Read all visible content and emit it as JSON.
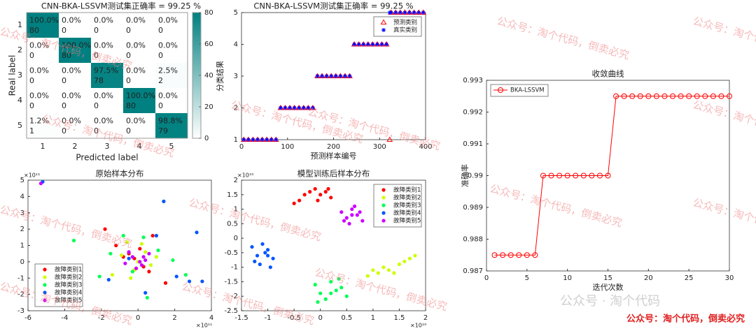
{
  "watermark": "公众号：淘个代码，倒卖必究",
  "footer_gray": "公众号 · 淘个代码",
  "chart_data": [
    {
      "type": "heatmap",
      "title": "CNN-BKA-LSSVM测试集正确率 = 99.25 %",
      "x_label": "Predicted label",
      "y_label": "Real label",
      "x_categories": [
        "1",
        "2",
        "3",
        "4",
        "5"
      ],
      "y_categories": [
        "1",
        "2",
        "3",
        "4",
        "5"
      ],
      "values": [
        [
          80,
          0,
          0,
          0,
          0
        ],
        [
          0,
          80,
          0,
          0,
          0
        ],
        [
          0,
          0,
          78,
          0,
          2
        ],
        [
          0,
          0,
          0,
          80,
          0
        ],
        [
          1,
          0,
          0,
          0,
          79
        ]
      ],
      "value_labels": [
        [
          "100.0%",
          "0.0%",
          "0.0%",
          "0.0%",
          "0.0%"
        ],
        [
          "0.0%",
          "100.0%",
          "0.0%",
          "0.0%",
          "0.0%"
        ],
        [
          "0.0%",
          "0.0%",
          "97.5%",
          "0.0%",
          "2.5%"
        ],
        [
          "0.0%",
          "0.0%",
          "0.0%",
          "100.0%",
          "0.0%"
        ],
        [
          "1.2%",
          "0.0%",
          "0.0%",
          "0.0%",
          "98.8%"
        ]
      ],
      "color": "#008080",
      "clim": [
        0,
        80
      ],
      "cticks": [
        0,
        20,
        40,
        60,
        80
      ]
    },
    {
      "type": "scatter",
      "title": "CNN-BKA-LSSVM测试集正确率 = 99.25 %",
      "x_label": "预测样本编号",
      "y_label": "分类结果",
      "xlim": [
        0,
        400
      ],
      "xticks": [
        0,
        100,
        200,
        300,
        400
      ],
      "ylim": [
        1,
        5
      ],
      "yticks": [
        1,
        2,
        3,
        4,
        5
      ],
      "legend": "upper right",
      "series": [
        {
          "name": "预测类别",
          "color": "#ff0000",
          "marker": "triangle",
          "x": [
            5,
            15,
            25,
            35,
            45,
            55,
            65,
            75,
            85,
            95,
            105,
            115,
            125,
            135,
            145,
            155,
            165,
            175,
            185,
            195,
            205,
            215,
            225,
            235,
            245,
            255,
            265,
            275,
            285,
            295,
            305,
            315,
            322,
            325,
            335,
            345,
            355,
            365,
            375,
            385,
            395
          ],
          "values": [
            1,
            1,
            1,
            1,
            1,
            1,
            1,
            1,
            2,
            2,
            2,
            2,
            2,
            2,
            2,
            2,
            3,
            3,
            3,
            3,
            3,
            3,
            3,
            3,
            4,
            4,
            4,
            4,
            4,
            4,
            4,
            4,
            1,
            5,
            5,
            5,
            5,
            5,
            5,
            5,
            5
          ]
        },
        {
          "name": "真实类别",
          "color": "#0000ff",
          "marker": "star",
          "x": [
            5,
            15,
            25,
            35,
            45,
            55,
            65,
            75,
            85,
            95,
            105,
            115,
            125,
            135,
            145,
            155,
            165,
            175,
            185,
            195,
            205,
            215,
            225,
            235,
            245,
            255,
            265,
            275,
            285,
            295,
            305,
            315,
            322,
            325,
            335,
            345,
            355,
            365,
            375,
            385,
            395
          ],
          "values": [
            1,
            1,
            1,
            1,
            1,
            1,
            1,
            1,
            2,
            2,
            2,
            2,
            2,
            2,
            2,
            2,
            3,
            3,
            3,
            3,
            3,
            3,
            3,
            3,
            4,
            4,
            4,
            4,
            4,
            4,
            4,
            4,
            5,
            5,
            5,
            5,
            5,
            5,
            5,
            5,
            5
          ]
        }
      ]
    },
    {
      "type": "line",
      "title": "收敛曲线",
      "x_label": "迭代次数",
      "y_label": "准确率",
      "xlim": [
        0,
        30
      ],
      "xticks": [
        0,
        5,
        10,
        15,
        20,
        25,
        30
      ],
      "ylim": [
        0.987,
        0.993
      ],
      "yticks": [
        0.987,
        0.988,
        0.989,
        0.99,
        0.991,
        0.992,
        0.993
      ],
      "legend": "upper left",
      "series": [
        {
          "name": "BKA-LSSVM",
          "color": "#ff0000",
          "marker": "circle",
          "x": [
            1,
            2,
            3,
            4,
            5,
            6,
            7,
            8,
            9,
            10,
            11,
            12,
            13,
            14,
            15,
            16,
            17,
            18,
            19,
            20,
            21,
            22,
            23,
            24,
            25,
            26,
            27,
            28,
            29,
            30
          ],
          "values": [
            0.9875,
            0.9875,
            0.9875,
            0.9875,
            0.9875,
            0.9875,
            0.99,
            0.99,
            0.99,
            0.99,
            0.99,
            0.99,
            0.99,
            0.99,
            0.99,
            0.9925,
            0.9925,
            0.9925,
            0.9925,
            0.9925,
            0.9925,
            0.9925,
            0.9925,
            0.9925,
            0.9925,
            0.9925,
            0.9925,
            0.9925,
            0.9925,
            0.9925
          ]
        }
      ]
    },
    {
      "type": "scatter",
      "title": "原始样本分布",
      "x_exponent": "×10¹¹",
      "y_exponent": "×10¹¹",
      "xlim": [
        -6,
        4
      ],
      "xticks": [
        -6,
        -4,
        -2,
        0,
        2,
        4
      ],
      "ylim": [
        -3,
        5
      ],
      "yticks": [
        -3,
        -2,
        -1,
        0,
        1,
        2,
        3,
        4,
        5
      ],
      "legend": "lower left",
      "series": [
        {
          "name": "故障类别1",
          "color": "#ff0000",
          "marker": "dot",
          "x": [
            -1.2,
            -0.5,
            0.3,
            0.8,
            -0.2,
            1.5,
            -1.8,
            0.1,
            0.6,
            -0.8
          ],
          "values": [
            1.0,
            0.5,
            -0.3,
            1.6,
            0.2,
            -1.3,
            2.0,
            0.8,
            -0.6,
            0.3
          ]
        },
        {
          "name": "故障类别2",
          "color": "#ccff00",
          "marker": "dot",
          "x": [
            -0.6,
            0.4,
            -0.2,
            1.0,
            -1.4,
            0.2,
            0.7,
            -0.9,
            0.0,
            -0.4
          ],
          "values": [
            1.2,
            0.6,
            -0.5,
            0.3,
            -0.8,
            1.1,
            -0.2,
            0.4,
            0.0,
            -1.0
          ]
        },
        {
          "name": "故障类别3",
          "color": "#00ff55",
          "marker": "dot",
          "x": [
            -3.5,
            -2.1,
            1.1,
            2.6,
            -0.8,
            0.5,
            1.9,
            -1.5,
            0.3,
            -0.3
          ],
          "values": [
            1.3,
            -0.9,
            0.7,
            -0.8,
            1.6,
            -2.2,
            0.1,
            0.5,
            1.5,
            -0.6
          ]
        },
        {
          "name": "故障类别4",
          "color": "#0055ff",
          "marker": "dot",
          "x": [
            -5.2,
            3.2,
            2.1,
            -1.6,
            1.0,
            2.8,
            -0.5,
            0.4,
            1.4,
            3.5
          ],
          "values": [
            4.9,
            1.8,
            -0.9,
            -1.1,
            1.6,
            -1.2,
            0.2,
            -1.9,
            3.7,
            -1.2
          ]
        },
        {
          "name": "故障类别5",
          "color": "#cc00ff",
          "marker": "dot",
          "x": [
            -5.3,
            -0.3,
            0.2,
            -0.5,
            0.4,
            -0.1,
            0.6,
            -0.7,
            0.1,
            0.3
          ],
          "values": [
            4.8,
            0.3,
            -0.2,
            0.6,
            0.1,
            -0.4,
            0.5,
            -0.1,
            0.0,
            0.3
          ]
        }
      ]
    },
    {
      "type": "scatter",
      "title": "模型训练后样本分布",
      "x_exponent": "×10¹⁰",
      "y_exponent": "×10¹⁰",
      "xlim": [
        -1.5,
        2
      ],
      "xticks": [
        -1.5,
        -1,
        -0.5,
        0,
        0.5,
        1,
        1.5,
        2
      ],
      "ylim": [
        -2.5,
        2
      ],
      "yticks": [
        -2.5,
        -2,
        -1.5,
        -1,
        -0.5,
        0,
        0.5,
        1,
        1.5,
        2
      ],
      "legend": "upper right",
      "series": [
        {
          "name": "故障类别1",
          "color": "#ff0000",
          "marker": "dot",
          "x": [
            -0.5,
            -0.3,
            -0.1,
            0.1,
            0.2,
            -0.4,
            0.0,
            -0.2,
            0.15,
            -0.05
          ],
          "values": [
            1.2,
            1.5,
            1.7,
            1.6,
            1.4,
            1.3,
            1.5,
            1.6,
            1.7,
            1.3
          ]
        },
        {
          "name": "故障类别2",
          "color": "#ccff00",
          "marker": "dot",
          "x": [
            0.9,
            1.1,
            1.3,
            1.5,
            1.7,
            1.8,
            1.2,
            1.6,
            1.4,
            1.0
          ],
          "values": [
            -1.3,
            -1.2,
            -1.1,
            -0.9,
            -0.7,
            -0.6,
            -1.0,
            -0.8,
            -1.2,
            -1.1
          ]
        },
        {
          "name": "故障类别3",
          "color": "#00ff55",
          "marker": "dot",
          "x": [
            -0.1,
            0.0,
            0.2,
            0.4,
            0.5,
            0.1,
            0.3,
            -0.05,
            0.35,
            0.2
          ],
          "values": [
            -1.6,
            -1.9,
            -1.5,
            -1.7,
            -2.0,
            -2.1,
            -1.8,
            -2.2,
            -1.4,
            -1.9
          ]
        },
        {
          "name": "故障类别4",
          "color": "#0055ff",
          "marker": "dot",
          "x": [
            -1.3,
            -1.2,
            -1.0,
            -0.9,
            -1.15,
            -1.05,
            -0.95,
            -1.25,
            -1.1,
            -1.0
          ],
          "values": [
            -0.3,
            -0.6,
            -0.4,
            -0.7,
            -0.9,
            -0.5,
            -1.0,
            -0.8,
            -0.2,
            -0.6
          ]
        },
        {
          "name": "故障类别5",
          "color": "#cc00ff",
          "marker": "dot",
          "x": [
            0.4,
            0.5,
            0.6,
            0.7,
            0.8,
            0.55,
            0.65,
            0.45,
            0.75,
            0.6
          ],
          "values": [
            0.9,
            0.7,
            1.0,
            0.8,
            0.6,
            0.5,
            1.1,
            0.6,
            0.9,
            0.8
          ]
        }
      ]
    }
  ]
}
